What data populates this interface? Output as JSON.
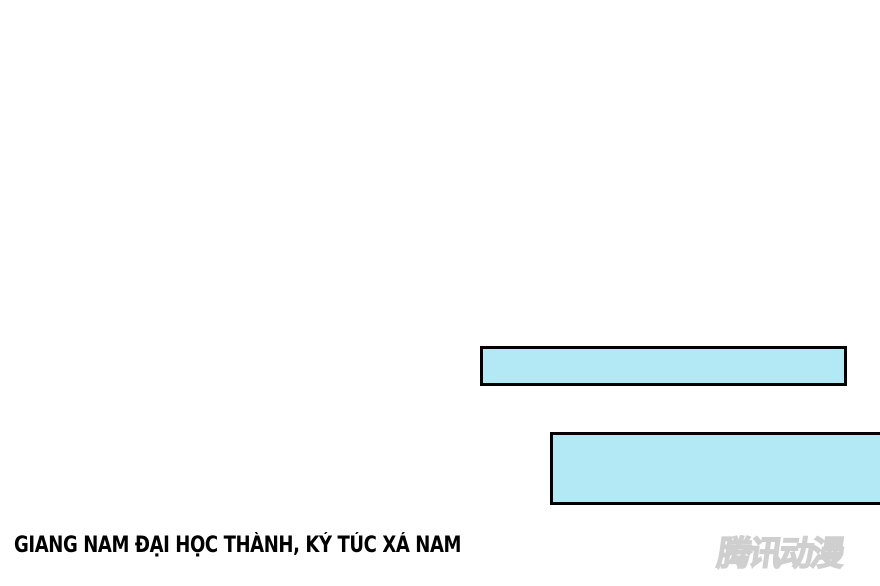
{
  "panel": {
    "caption": "GIANG NAM ĐẠI HỌC THÀNH, KÝ TÚC XÁ NAM",
    "watermark": "腾讯动漫",
    "box_fill": "#b3e8f5"
  }
}
